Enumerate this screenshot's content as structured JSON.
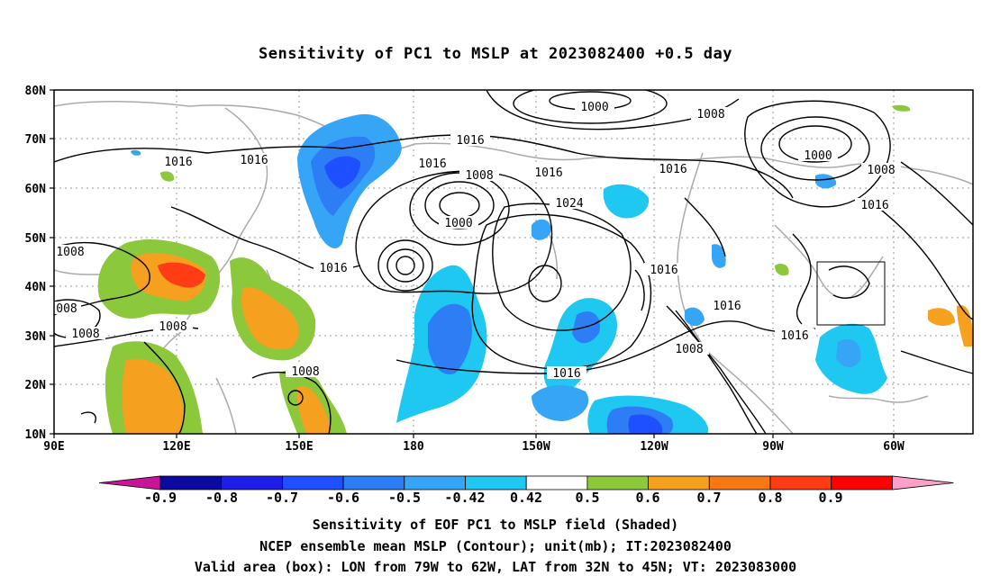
{
  "title": "Sensitivity of PC1 to MSLP at 2023082400 +0.5 day",
  "lat_ticks": [
    "80N",
    "70N",
    "60N",
    "50N",
    "40N",
    "30N",
    "20N",
    "10N"
  ],
  "lon_ticks": [
    "90E",
    "120E",
    "150E",
    "180",
    "150W",
    "120W",
    "90W",
    "60W"
  ],
  "contour_labels": [
    "1000",
    "1008",
    "1016",
    "1016",
    "1016",
    "1008",
    "1000",
    "1016",
    "1024",
    "1016",
    "1016",
    "1000",
    "1008",
    "1016",
    "1016",
    "1016",
    "1008",
    "1008",
    "008",
    "1008",
    "1016",
    "1016",
    "1008",
    "1016",
    "1016",
    "1008"
  ],
  "colorbar": {
    "labels": [
      "-0.9",
      "-0.8",
      "-0.7",
      "-0.6",
      "-0.5",
      "-0.42",
      "0.42",
      "0.5",
      "0.6",
      "0.7",
      "0.8",
      "0.9"
    ],
    "colors": [
      "#0a0aa0",
      "#1e1ee6",
      "#1e50ff",
      "#2d7df5",
      "#37a5f5",
      "#1ec8f0",
      "#ffffff",
      "#8cc83c",
      "#f5a01e",
      "#f57814",
      "#ff3c14",
      "#ff0000"
    ],
    "end_low": "#c81496",
    "end_high": "#ffa0c8"
  },
  "captions": [
    "Sensitivity of EOF PC1 to MSLP field (Shaded)",
    "NCEP ensemble mean MSLP (Contour); unit(mb); IT:2023082400",
    "Valid area (box): LON from 79W to 62W, LAT from 32N to 45N; VT: 2023083000"
  ],
  "valid_box": {
    "lon": [
      "79W",
      "62W"
    ],
    "lat": [
      "32N",
      "45N"
    ]
  }
}
